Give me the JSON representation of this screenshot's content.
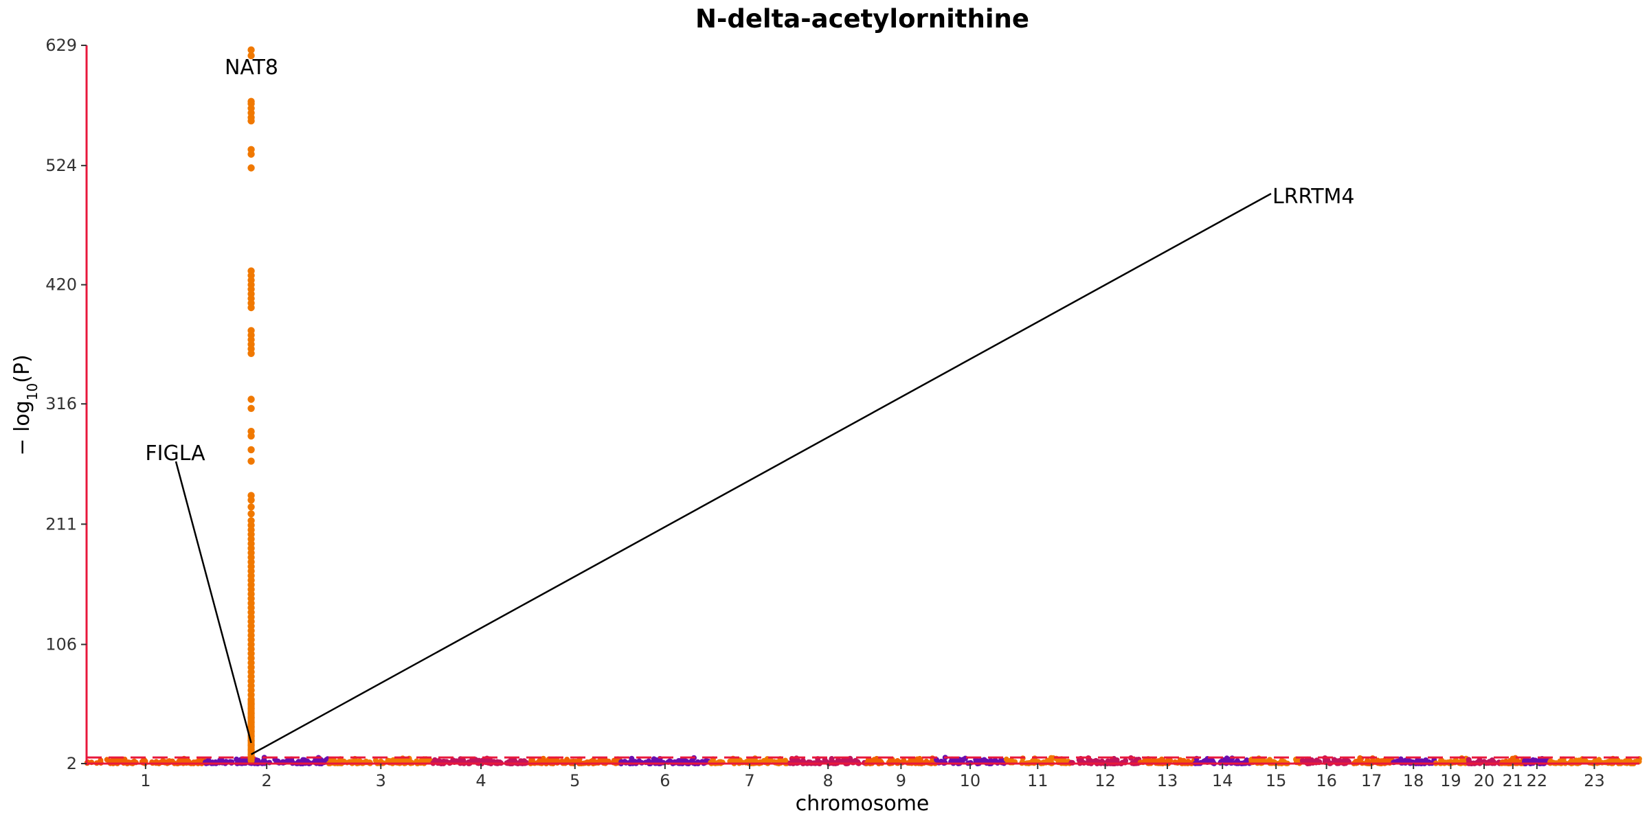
{
  "chart_data": {
    "type": "scatter",
    "title": "N-delta-acetylornithine",
    "xlabel": "chromosome",
    "ylabel": "− log10(P)",
    "ylabel_parts": {
      "pre": "− log",
      "sub": "10",
      "post": "(P)"
    },
    "yticks": [
      2,
      106,
      211,
      316,
      420,
      524,
      629
    ],
    "ylim": [
      2,
      629
    ],
    "xlim": [
      0,
      100
    ],
    "chromosomes": [
      {
        "label": "1",
        "start": 0,
        "end": 7.6
      },
      {
        "label": "2",
        "start": 7.6,
        "end": 15.6
      },
      {
        "label": "3",
        "start": 15.6,
        "end": 22.3
      },
      {
        "label": "4",
        "start": 22.3,
        "end": 28.5
      },
      {
        "label": "5",
        "start": 28.5,
        "end": 34.4
      },
      {
        "label": "6",
        "start": 34.4,
        "end": 40.1
      },
      {
        "label": "7",
        "start": 40.1,
        "end": 45.3
      },
      {
        "label": "8",
        "start": 45.3,
        "end": 50.2
      },
      {
        "label": "9",
        "start": 50.2,
        "end": 54.7
      },
      {
        "label": "10",
        "start": 54.7,
        "end": 59.1
      },
      {
        "label": "11",
        "start": 59.1,
        "end": 63.4
      },
      {
        "label": "12",
        "start": 63.4,
        "end": 67.8
      },
      {
        "label": "13",
        "start": 67.8,
        "end": 71.4
      },
      {
        "label": "14",
        "start": 71.4,
        "end": 74.9
      },
      {
        "label": "15",
        "start": 74.9,
        "end": 78.3
      },
      {
        "label": "16",
        "start": 78.3,
        "end": 81.4
      },
      {
        "label": "17",
        "start": 81.4,
        "end": 84.1
      },
      {
        "label": "18",
        "start": 84.1,
        "end": 86.8
      },
      {
        "label": "19",
        "start": 86.8,
        "end": 88.9
      },
      {
        "label": "20",
        "start": 88.9,
        "end": 91.1
      },
      {
        "label": "21",
        "start": 91.1,
        "end": 92.6
      },
      {
        "label": "22",
        "start": 92.6,
        "end": 94.2
      },
      {
        "label": "23",
        "start": 94.2,
        "end": 100
      }
    ],
    "chromosome_colors": [
      "#f06000",
      "#6a0dad",
      "#f07800",
      "#c0145c"
    ],
    "threshold": {
      "value": 7.3,
      "color": "#e8183c"
    },
    "axis_color": "#e8183c",
    "highlight_color": "#f07800",
    "peak": {
      "x": 10.6,
      "values": [
        625,
        620,
        580,
        578,
        574,
        570,
        566,
        563,
        538,
        534,
        522,
        432,
        428,
        424,
        420,
        416,
        412,
        408,
        404,
        400,
        380,
        376,
        372,
        368,
        364,
        360,
        320,
        312,
        292,
        288,
        276,
        266,
        236,
        232,
        226,
        220,
        214,
        210,
        206,
        202,
        198,
        194,
        190,
        186,
        182,
        178,
        174,
        170,
        166,
        162,
        158,
        154,
        150,
        146,
        142,
        138,
        134,
        130,
        126,
        122,
        118,
        114,
        110,
        106,
        102,
        98,
        94,
        90,
        86,
        82,
        78,
        74,
        70,
        66,
        62,
        58,
        54,
        50,
        46,
        42,
        38,
        34,
        30,
        26,
        22,
        18,
        14,
        10
      ]
    },
    "annotations": [
      {
        "label": "NAT8",
        "point": [
          10.6,
          625
        ]
      },
      {
        "label": "FIGLA",
        "point": [
          10.6,
          20
        ]
      },
      {
        "label": "LRRTM4",
        "point": [
          10.6,
          10
        ]
      }
    ]
  }
}
